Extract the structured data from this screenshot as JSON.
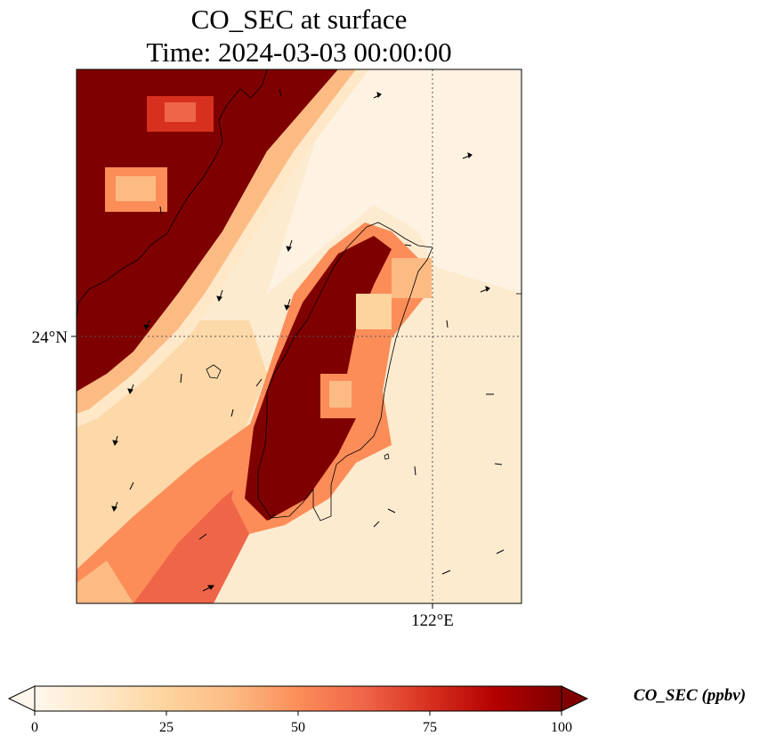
{
  "title": {
    "line1": "CO_SEC at surface",
    "line2": "Time: 2024-03-03 00:00:00"
  },
  "map": {
    "lat_label": "24°N",
    "lon_label": "122°E",
    "gridline_lat": 24,
    "gridline_lon": 122,
    "colormap": "OrRd",
    "gridlines": "dotted"
  },
  "colorbar": {
    "title": "CO_SEC (ppbv)",
    "ticks": [
      "0",
      "25",
      "50",
      "75",
      "100"
    ],
    "min": 0,
    "max": 100,
    "extend": "both",
    "colors": [
      "#fff7ec",
      "#fee8c8",
      "#fdd49e",
      "#fdbb84",
      "#fc8d59",
      "#ef6548",
      "#d7301f",
      "#b30000",
      "#7f0000"
    ]
  }
}
